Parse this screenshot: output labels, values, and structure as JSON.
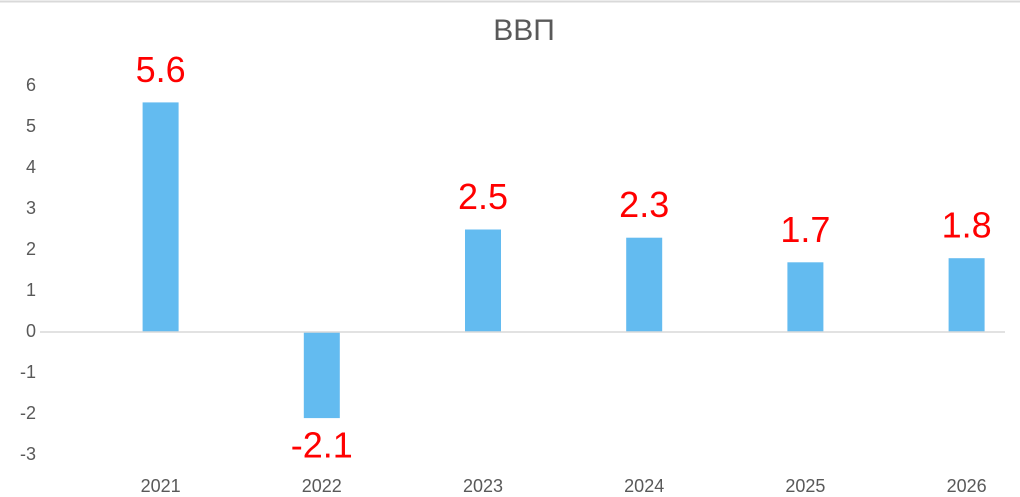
{
  "chart_data": {
    "type": "bar",
    "title": "ВВП",
    "categories": [
      "2021",
      "2022",
      "2023",
      "2024",
      "2025",
      "2026"
    ],
    "values": [
      5.6,
      -2.1,
      2.5,
      2.3,
      1.7,
      1.8
    ],
    "color": "#63bbf0",
    "label_color": "#ff0000",
    "ylim": [
      -3,
      6
    ],
    "yticks": [
      -3,
      -2,
      -1,
      0,
      1,
      2,
      3,
      4,
      5,
      6
    ],
    "grid": false
  }
}
